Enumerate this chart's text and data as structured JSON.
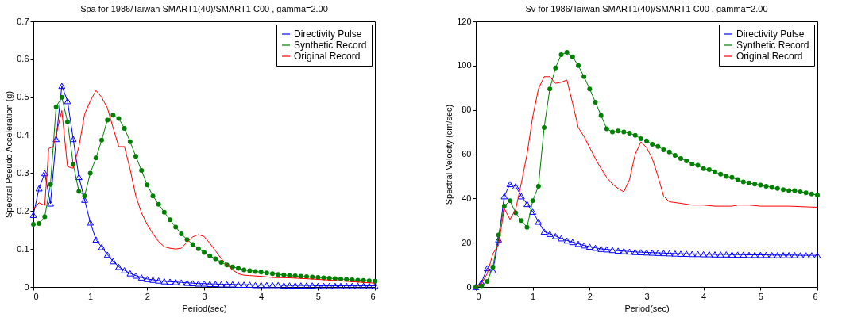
{
  "chart_data": [
    {
      "type": "line",
      "title": "Spa for 1986/Taiwan SMART1(40)/SMART1 C00 , gamma=2.00",
      "xlabel": "Period(sec)",
      "ylabel": "Spectral Pseudo Acceleration (g)",
      "x": [
        0,
        0.1,
        0.2,
        0.3,
        0.4,
        0.5,
        0.6,
        0.7,
        0.8,
        0.9,
        1.0,
        1.1,
        1.2,
        1.3,
        1.4,
        1.5,
        1.6,
        1.7,
        1.8,
        1.9,
        2.0,
        2.1,
        2.2,
        2.3,
        2.4,
        2.5,
        2.6,
        2.7,
        2.8,
        2.9,
        3.0,
        3.1,
        3.2,
        3.3,
        3.4,
        3.5,
        3.6,
        3.7,
        3.8,
        3.9,
        4.0,
        4.1,
        4.2,
        4.3,
        4.4,
        4.5,
        4.6,
        4.7,
        4.8,
        4.9,
        5.0,
        5.1,
        5.2,
        5.3,
        5.4,
        5.5,
        5.6,
        5.7,
        5.8,
        5.9,
        6.0
      ],
      "series": [
        {
          "name": "Directivity Pulse",
          "color": "#0000ff",
          "marker": "triangle",
          "values": [
            0.19,
            0.26,
            0.3,
            0.22,
            0.39,
            0.53,
            0.49,
            0.39,
            0.29,
            0.23,
            0.17,
            0.125,
            0.105,
            0.085,
            0.068,
            0.053,
            0.044,
            0.036,
            0.03,
            0.025,
            0.021,
            0.019,
            0.017,
            0.015,
            0.014,
            0.013,
            0.012,
            0.011,
            0.01,
            0.009,
            0.009,
            0.008,
            0.008,
            0.007,
            0.007,
            0.007,
            0.006,
            0.006,
            0.006,
            0.005,
            0.005,
            0.005,
            0.005,
            0.005,
            0.004,
            0.004,
            0.004,
            0.004,
            0.004,
            0.004,
            0.003,
            0.003,
            0.003,
            0.003,
            0.003,
            0.003,
            0.003,
            0.003,
            0.003,
            0.003,
            0.003
          ]
        },
        {
          "name": "Synthetic Record",
          "color": "#008000",
          "marker": "circle",
          "values": [
            0.165,
            0.167,
            0.185,
            0.27,
            0.475,
            0.5,
            0.435,
            0.323,
            0.252,
            0.24,
            0.3,
            0.34,
            0.387,
            0.44,
            0.453,
            0.444,
            0.418,
            0.383,
            0.344,
            0.307,
            0.269,
            0.24,
            0.218,
            0.197,
            0.177,
            0.158,
            0.14,
            0.125,
            0.112,
            0.101,
            0.091,
            0.082,
            0.074,
            0.065,
            0.058,
            0.053,
            0.049,
            0.045,
            0.043,
            0.041,
            0.039,
            0.037,
            0.035,
            0.033,
            0.032,
            0.03,
            0.029,
            0.028,
            0.027,
            0.026,
            0.025,
            0.024,
            0.023,
            0.022,
            0.021,
            0.02,
            0.019,
            0.018,
            0.017,
            0.016,
            0.015
          ]
        },
        {
          "name": "Original Record",
          "color": "#ff0000",
          "marker": "none",
          "x": [
            0,
            0.1,
            0.2,
            0.27,
            0.35,
            0.5,
            0.6,
            0.7,
            0.8,
            0.9,
            1.0,
            1.1,
            1.2,
            1.3,
            1.4,
            1.5,
            1.6,
            1.7,
            1.8,
            1.9,
            2.0,
            2.1,
            2.2,
            2.3,
            2.4,
            2.5,
            2.6,
            2.7,
            2.8,
            2.9,
            3.0,
            3.1,
            3.2,
            3.3,
            3.4,
            3.5,
            3.6,
            3.7,
            3.8,
            4.0,
            4.2,
            4.5,
            5.0,
            5.5,
            6.0
          ],
          "values": [
            0.205,
            0.222,
            0.215,
            0.365,
            0.37,
            0.465,
            0.317,
            0.313,
            0.37,
            0.455,
            0.49,
            0.518,
            0.5,
            0.472,
            0.42,
            0.37,
            0.37,
            0.31,
            0.24,
            0.195,
            0.165,
            0.14,
            0.12,
            0.106,
            0.102,
            0.1,
            0.102,
            0.118,
            0.132,
            0.138,
            0.133,
            0.115,
            0.095,
            0.075,
            0.058,
            0.045,
            0.035,
            0.031,
            0.03,
            0.028,
            0.025,
            0.024,
            0.02,
            0.015,
            0.01
          ]
        }
      ],
      "xlim": [
        0,
        6
      ],
      "xticks": [
        0,
        1,
        2,
        3,
        4,
        5,
        6
      ],
      "ylim": [
        0,
        0.7
      ],
      "yticks": [
        0,
        0.1,
        0.2,
        0.3,
        0.4,
        0.5,
        0.6,
        0.7
      ],
      "grid": false,
      "legend": "top right",
      "line_style": "solid"
    },
    {
      "type": "line",
      "title": "Sv for 1986/Taiwan SMART1(40)/SMART1 C00 , gamma=2.00",
      "xlabel": "Period(sec)",
      "ylabel": "Spectral Velocity (cm/sec)",
      "x": [
        0,
        0.1,
        0.2,
        0.3,
        0.4,
        0.5,
        0.6,
        0.7,
        0.8,
        0.9,
        1.0,
        1.1,
        1.2,
        1.3,
        1.4,
        1.5,
        1.6,
        1.7,
        1.8,
        1.9,
        2.0,
        2.1,
        2.2,
        2.3,
        2.4,
        2.5,
        2.6,
        2.7,
        2.8,
        2.9,
        3.0,
        3.1,
        3.2,
        3.3,
        3.4,
        3.5,
        3.6,
        3.7,
        3.8,
        3.9,
        4.0,
        4.1,
        4.2,
        4.3,
        4.4,
        4.5,
        4.6,
        4.7,
        4.8,
        4.9,
        5.0,
        5.1,
        5.2,
        5.3,
        5.4,
        5.5,
        5.6,
        5.7,
        5.8,
        5.9,
        6.0
      ],
      "series": [
        {
          "name": "Directivity Pulse",
          "color": "#0000ff",
          "marker": "triangle",
          "values": [
            0,
            2,
            8.5,
            7.5,
            21.5,
            41,
            46.5,
            45.5,
            41,
            37.5,
            34,
            29.5,
            25,
            24,
            23,
            22,
            21,
            20.3,
            19.5,
            18.8,
            18.2,
            17.7,
            17.2,
            17,
            16.7,
            16.4,
            16.2,
            16,
            15.8,
            15.7,
            15.6,
            15.5,
            15.4,
            15.3,
            15.2,
            15.1,
            15,
            15,
            14.9,
            14.9,
            14.8,
            14.8,
            14.7,
            14.7,
            14.7,
            14.6,
            14.6,
            14.6,
            14.5,
            14.5,
            14.5,
            14.5,
            14.4,
            14.4,
            14.4,
            14.4,
            14.4,
            14.3,
            14.3,
            14.3,
            14.3
          ]
        },
        {
          "name": "Synthetic Record",
          "color": "#008000",
          "marker": "circle",
          "values": [
            0,
            0.5,
            2.5,
            9,
            23.5,
            36.5,
            39,
            33.5,
            30,
            27,
            39,
            45.5,
            72,
            89.5,
            99,
            105,
            106,
            104,
            100,
            95,
            89.5,
            83.5,
            77.5,
            71.5,
            70,
            70.5,
            70,
            69.5,
            68.5,
            67,
            66,
            64.5,
            63.5,
            62,
            61,
            59.5,
            58,
            57,
            55.5,
            55,
            53.5,
            53,
            52,
            51,
            50,
            49.5,
            48.5,
            47.5,
            47,
            46.5,
            46,
            45.5,
            45,
            44.5,
            44,
            43.5,
            43.5,
            43,
            42.5,
            42,
            41.5
          ]
        },
        {
          "name": "Original Record",
          "color": "#ff0000",
          "marker": "none",
          "x": [
            0,
            0.1,
            0.2,
            0.3,
            0.4,
            0.5,
            0.6,
            0.7,
            0.8,
            0.9,
            1.0,
            1.1,
            1.2,
            1.3,
            1.4,
            1.5,
            1.6,
            1.7,
            1.8,
            1.9,
            2.0,
            2.1,
            2.2,
            2.3,
            2.4,
            2.5,
            2.6,
            2.7,
            2.8,
            2.9,
            3.0,
            3.1,
            3.2,
            3.3,
            3.4,
            3.6,
            3.8,
            4.0,
            4.2,
            4.5,
            4.6,
            4.8,
            5.0,
            5.5,
            6.0
          ],
          "values": [
            0,
            1.5,
            6,
            15,
            19,
            35.5,
            30.5,
            35,
            47,
            60,
            77,
            89.5,
            95,
            95,
            92,
            92.5,
            93.5,
            83,
            72,
            68,
            63,
            58,
            53.5,
            49.5,
            46.5,
            44.5,
            43,
            48.5,
            60,
            65.5,
            63,
            58,
            50,
            41,
            38.5,
            37.8,
            37,
            37,
            36.5,
            36.5,
            37,
            37,
            36.5,
            36.5,
            36
          ]
        }
      ],
      "xlim": [
        0,
        6
      ],
      "xticks": [
        0,
        1,
        2,
        3,
        4,
        5,
        6
      ],
      "ylim": [
        0,
        120
      ],
      "yticks": [
        0,
        20,
        40,
        60,
        80,
        100,
        120
      ],
      "grid": false,
      "legend": "top right",
      "line_style": "solid"
    }
  ]
}
